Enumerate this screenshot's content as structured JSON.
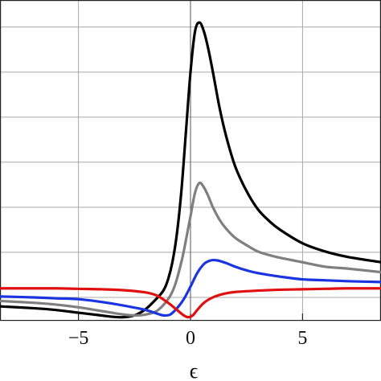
{
  "chart_data": {
    "type": "line",
    "xlabel": "ϵ",
    "ylabel": "",
    "title": "",
    "xlim": [
      -8.5,
      8.5
    ],
    "ylim": [
      -0.25,
      3.3
    ],
    "grid": true,
    "x_ticks": [
      -5,
      0,
      5
    ],
    "x_tick_labels": [
      "−5",
      "0",
      "5"
    ],
    "y_grid_values": [
      0,
      0.5,
      1,
      1.5,
      2,
      2.5,
      3
    ],
    "legend": "none",
    "series": [
      {
        "color": "#000000",
        "x": [
          -8.5,
          -7,
          -6,
          -5,
          -4,
          -3.5,
          -3,
          -2.5,
          -2,
          -1.5,
          -1.2,
          -1,
          -0.8,
          -0.6,
          -0.4,
          -0.2,
          0,
          0.2,
          0.4,
          0.6,
          0.8,
          1,
          1.3,
          1.6,
          2,
          2.5,
          3,
          3.5,
          4,
          5,
          6,
          7,
          8.5
        ],
        "y": [
          -0.1,
          -0.12,
          -0.14,
          -0.17,
          -0.2,
          -0.215,
          -0.22,
          -0.2,
          -0.13,
          -0.01,
          0.08,
          0.2,
          0.4,
          0.72,
          1.2,
          1.85,
          2.5,
          2.95,
          3.05,
          2.95,
          2.75,
          2.5,
          2.1,
          1.78,
          1.45,
          1.18,
          0.98,
          0.85,
          0.75,
          0.6,
          0.51,
          0.45,
          0.39
        ]
      },
      {
        "color": "#7f7f7f",
        "x": [
          -8.5,
          -7,
          -6,
          -5,
          -4,
          -3,
          -2.5,
          -2,
          -1.5,
          -1,
          -0.7,
          -0.4,
          -0.2,
          0,
          0.2,
          0.4,
          0.6,
          0.8,
          1,
          1.3,
          1.6,
          2,
          2.5,
          3,
          3.5,
          4,
          5,
          6,
          7,
          8.5
        ],
        "y": [
          -0.04,
          -0.06,
          -0.08,
          -0.11,
          -0.15,
          -0.19,
          -0.2,
          -0.19,
          -0.15,
          -0.02,
          0.13,
          0.4,
          0.64,
          0.9,
          1.16,
          1.27,
          1.22,
          1.12,
          1.0,
          0.86,
          0.76,
          0.66,
          0.58,
          0.51,
          0.47,
          0.44,
          0.39,
          0.34,
          0.32,
          0.28
        ]
      },
      {
        "color": "#1a35e0",
        "x": [
          -8.5,
          -7,
          -6,
          -5,
          -4,
          -3,
          -2,
          -1.5,
          -1.2,
          -0.9,
          -0.6,
          -0.3,
          0,
          0.3,
          0.6,
          0.9,
          1.2,
          1.6,
          2,
          2.5,
          3,
          4,
          5,
          6,
          7,
          8.5
        ],
        "y": [
          0.01,
          0.0,
          -0.01,
          -0.02,
          -0.05,
          -0.09,
          -0.14,
          -0.18,
          -0.2,
          -0.19,
          -0.12,
          -0.02,
          0.12,
          0.27,
          0.37,
          0.41,
          0.41,
          0.38,
          0.34,
          0.3,
          0.27,
          0.23,
          0.2,
          0.19,
          0.18,
          0.17
        ]
      },
      {
        "color": "#e01010",
        "x": [
          -8.5,
          -7,
          -6,
          -5,
          -4,
          -3,
          -2,
          -1.5,
          -1,
          -0.6,
          -0.3,
          -0.1,
          0.1,
          0.3,
          0.6,
          1,
          1.5,
          2,
          3,
          4,
          5,
          6,
          7,
          8.5
        ],
        "y": [
          0.1,
          0.1,
          0.1,
          0.095,
          0.09,
          0.08,
          0.055,
          0.02,
          -0.06,
          -0.14,
          -0.2,
          -0.22,
          -0.2,
          -0.14,
          -0.06,
          0.0,
          0.04,
          0.06,
          0.075,
          0.085,
          0.09,
          0.095,
          0.1,
          0.1
        ]
      }
    ]
  }
}
